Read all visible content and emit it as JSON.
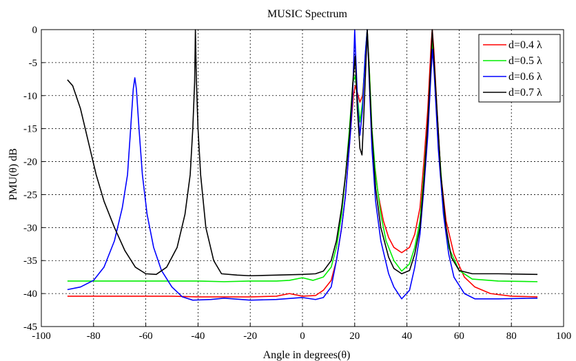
{
  "chart_data": {
    "type": "line",
    "title": "MUSIC Spectrum",
    "xlabel": "Angle in degrees(θ)",
    "ylabel": "PMU(θ) dB",
    "xlim": [
      -100,
      100
    ],
    "ylim": [
      -45,
      0
    ],
    "xticks": [
      -100,
      -80,
      -60,
      -40,
      -20,
      0,
      20,
      40,
      60,
      80,
      100
    ],
    "yticks": [
      0,
      -5,
      -10,
      -15,
      -20,
      -25,
      -30,
      -35,
      -40,
      -45
    ],
    "grid": true,
    "grid_style": "dotted",
    "legend_position": "top-right",
    "series": [
      {
        "name": "d=0.4 λ",
        "color": "#ff0000",
        "points": [
          [
            -90,
            -40.4
          ],
          [
            -70,
            -40.4
          ],
          [
            -50,
            -40.4
          ],
          [
            -40,
            -40.5
          ],
          [
            -30,
            -40.5
          ],
          [
            -20,
            -40.5
          ],
          [
            -10,
            -40.4
          ],
          [
            -5,
            -40.0
          ],
          [
            0,
            -40.4
          ],
          [
            5,
            -40.3
          ],
          [
            8,
            -39.5
          ],
          [
            11,
            -38
          ],
          [
            13,
            -35
          ],
          [
            15,
            -30
          ],
          [
            16.5,
            -25
          ],
          [
            17.5,
            -20
          ],
          [
            18.5,
            -15
          ],
          [
            19.5,
            -10
          ],
          [
            20.2,
            -8.5
          ],
          [
            21,
            -9.5
          ],
          [
            22,
            -11
          ],
          [
            23,
            -10
          ],
          [
            24,
            -5
          ],
          [
            24.8,
            0
          ],
          [
            25.5,
            -5
          ],
          [
            26.5,
            -15
          ],
          [
            27.5,
            -20
          ],
          [
            29,
            -25
          ],
          [
            31,
            -29
          ],
          [
            33,
            -31.5
          ],
          [
            35,
            -33
          ],
          [
            38,
            -33.8
          ],
          [
            41,
            -33
          ],
          [
            43,
            -31
          ],
          [
            45,
            -27
          ],
          [
            46.5,
            -20
          ],
          [
            48,
            -12
          ],
          [
            49.3,
            -2
          ],
          [
            49.7,
            0
          ],
          [
            50.3,
            -3
          ],
          [
            51.5,
            -12
          ],
          [
            53,
            -22
          ],
          [
            55,
            -29
          ],
          [
            58,
            -34
          ],
          [
            62,
            -37.5
          ],
          [
            66,
            -39
          ],
          [
            72,
            -40
          ],
          [
            80,
            -40.4
          ],
          [
            90,
            -40.5
          ]
        ]
      },
      {
        "name": "d=0.5 λ",
        "color": "#00ee00",
        "points": [
          [
            -90,
            -38.1
          ],
          [
            -70,
            -38.1
          ],
          [
            -50,
            -38.1
          ],
          [
            -40,
            -38.1
          ],
          [
            -30,
            -38.2
          ],
          [
            -20,
            -38.1
          ],
          [
            -10,
            -38.1
          ],
          [
            -5,
            -38.0
          ],
          [
            0,
            -37.6
          ],
          [
            4,
            -38.0
          ],
          [
            8,
            -37.5
          ],
          [
            11,
            -36
          ],
          [
            13,
            -33
          ],
          [
            15,
            -28
          ],
          [
            16.5,
            -22
          ],
          [
            18,
            -15
          ],
          [
            19.3,
            -8
          ],
          [
            20.2,
            -7
          ],
          [
            21,
            -10
          ],
          [
            22,
            -14
          ],
          [
            23,
            -11
          ],
          [
            24,
            -4
          ],
          [
            24.8,
            0
          ],
          [
            25.6,
            -6
          ],
          [
            26.6,
            -15
          ],
          [
            28,
            -22
          ],
          [
            30,
            -28
          ],
          [
            32,
            -32
          ],
          [
            35,
            -35
          ],
          [
            38,
            -36.6
          ],
          [
            41,
            -35.5
          ],
          [
            43,
            -33
          ],
          [
            45,
            -29
          ],
          [
            46.5,
            -22
          ],
          [
            48,
            -14
          ],
          [
            49.3,
            -5
          ],
          [
            49.8,
            -2
          ],
          [
            50.5,
            -6
          ],
          [
            52,
            -16
          ],
          [
            54,
            -27
          ],
          [
            56,
            -33
          ],
          [
            60,
            -36.5
          ],
          [
            65,
            -37.8
          ],
          [
            75,
            -38.1
          ],
          [
            90,
            -38.2
          ]
        ]
      },
      {
        "name": "d=0.6 λ",
        "color": "#0000ff",
        "points": [
          [
            -90,
            -39.4
          ],
          [
            -85,
            -39
          ],
          [
            -80,
            -38
          ],
          [
            -76,
            -36
          ],
          [
            -72,
            -32
          ],
          [
            -69,
            -27
          ],
          [
            -67,
            -22
          ],
          [
            -65.8,
            -15
          ],
          [
            -64.8,
            -9
          ],
          [
            -64.2,
            -7.3
          ],
          [
            -63.6,
            -9
          ],
          [
            -62.6,
            -15
          ],
          [
            -61.3,
            -22
          ],
          [
            -59.5,
            -28
          ],
          [
            -57,
            -33
          ],
          [
            -54,
            -36.5
          ],
          [
            -50,
            -39
          ],
          [
            -46,
            -40.5
          ],
          [
            -42,
            -41
          ],
          [
            -35,
            -40.9
          ],
          [
            -30,
            -40.7
          ],
          [
            -20,
            -41
          ],
          [
            -10,
            -40.9
          ],
          [
            0,
            -40.6
          ],
          [
            5,
            -40.9
          ],
          [
            8,
            -40.6
          ],
          [
            11,
            -39
          ],
          [
            13,
            -35
          ],
          [
            15,
            -30
          ],
          [
            16.5,
            -25
          ],
          [
            17.5,
            -20
          ],
          [
            18.5,
            -15
          ],
          [
            19.2,
            -10
          ],
          [
            19.7,
            -4
          ],
          [
            20,
            0
          ],
          [
            20.5,
            -5
          ],
          [
            21.2,
            -12
          ],
          [
            22,
            -16
          ],
          [
            23,
            -12
          ],
          [
            24,
            -4
          ],
          [
            24.8,
            0
          ],
          [
            25.6,
            -8
          ],
          [
            26.6,
            -18
          ],
          [
            28,
            -26
          ],
          [
            30,
            -32
          ],
          [
            33,
            -37
          ],
          [
            35,
            -39
          ],
          [
            38,
            -40.8
          ],
          [
            41,
            -39.5
          ],
          [
            43,
            -36
          ],
          [
            45,
            -31
          ],
          [
            46.5,
            -24
          ],
          [
            48,
            -16
          ],
          [
            49.3,
            -6
          ],
          [
            49.8,
            -3
          ],
          [
            50.5,
            -7
          ],
          [
            52,
            -18
          ],
          [
            54,
            -28
          ],
          [
            56,
            -34
          ],
          [
            58,
            -37.5
          ],
          [
            62,
            -40
          ],
          [
            66,
            -40.8
          ],
          [
            75,
            -40.8
          ],
          [
            90,
            -40.7
          ]
        ]
      },
      {
        "name": "d=0.7 λ",
        "color": "#000000",
        "points": [
          [
            -90,
            -7.6
          ],
          [
            -88,
            -8.5
          ],
          [
            -85,
            -12
          ],
          [
            -82,
            -17
          ],
          [
            -79,
            -22
          ],
          [
            -76,
            -26
          ],
          [
            -72,
            -30
          ],
          [
            -68,
            -33.5
          ],
          [
            -64,
            -36
          ],
          [
            -60,
            -37
          ],
          [
            -56,
            -37.1
          ],
          [
            -52,
            -36
          ],
          [
            -48,
            -33
          ],
          [
            -45,
            -28
          ],
          [
            -43,
            -22
          ],
          [
            -42,
            -15
          ],
          [
            -41.3,
            -8
          ],
          [
            -41,
            0
          ],
          [
            -40.6,
            -8
          ],
          [
            -40,
            -15
          ],
          [
            -39,
            -22
          ],
          [
            -37,
            -30
          ],
          [
            -34,
            -35
          ],
          [
            -31,
            -37
          ],
          [
            -25,
            -37.2
          ],
          [
            -20,
            -37.3
          ],
          [
            -10,
            -37.2
          ],
          [
            0,
            -37.1
          ],
          [
            5,
            -37
          ],
          [
            8,
            -36.6
          ],
          [
            11,
            -35
          ],
          [
            13,
            -32
          ],
          [
            15,
            -27
          ],
          [
            16.5,
            -22
          ],
          [
            18,
            -16
          ],
          [
            19.3,
            -8
          ],
          [
            20.2,
            -4
          ],
          [
            21,
            -12
          ],
          [
            22,
            -18
          ],
          [
            22.8,
            -19
          ],
          [
            23.6,
            -12
          ],
          [
            24.3,
            -5
          ],
          [
            24.8,
            0
          ],
          [
            25.5,
            -6
          ],
          [
            26.5,
            -15
          ],
          [
            28,
            -24
          ],
          [
            30,
            -30
          ],
          [
            33,
            -34.5
          ],
          [
            35,
            -36.2
          ],
          [
            38,
            -37
          ],
          [
            41,
            -36.5
          ],
          [
            43,
            -34
          ],
          [
            45,
            -30
          ],
          [
            46.5,
            -23
          ],
          [
            48,
            -14
          ],
          [
            49.3,
            -4
          ],
          [
            49.7,
            0
          ],
          [
            50.3,
            -4
          ],
          [
            51.5,
            -12
          ],
          [
            53,
            -22
          ],
          [
            55,
            -30
          ],
          [
            57,
            -34.5
          ],
          [
            60,
            -36.5
          ],
          [
            65,
            -37
          ],
          [
            75,
            -37
          ],
          [
            90,
            -37.1
          ]
        ]
      }
    ]
  }
}
